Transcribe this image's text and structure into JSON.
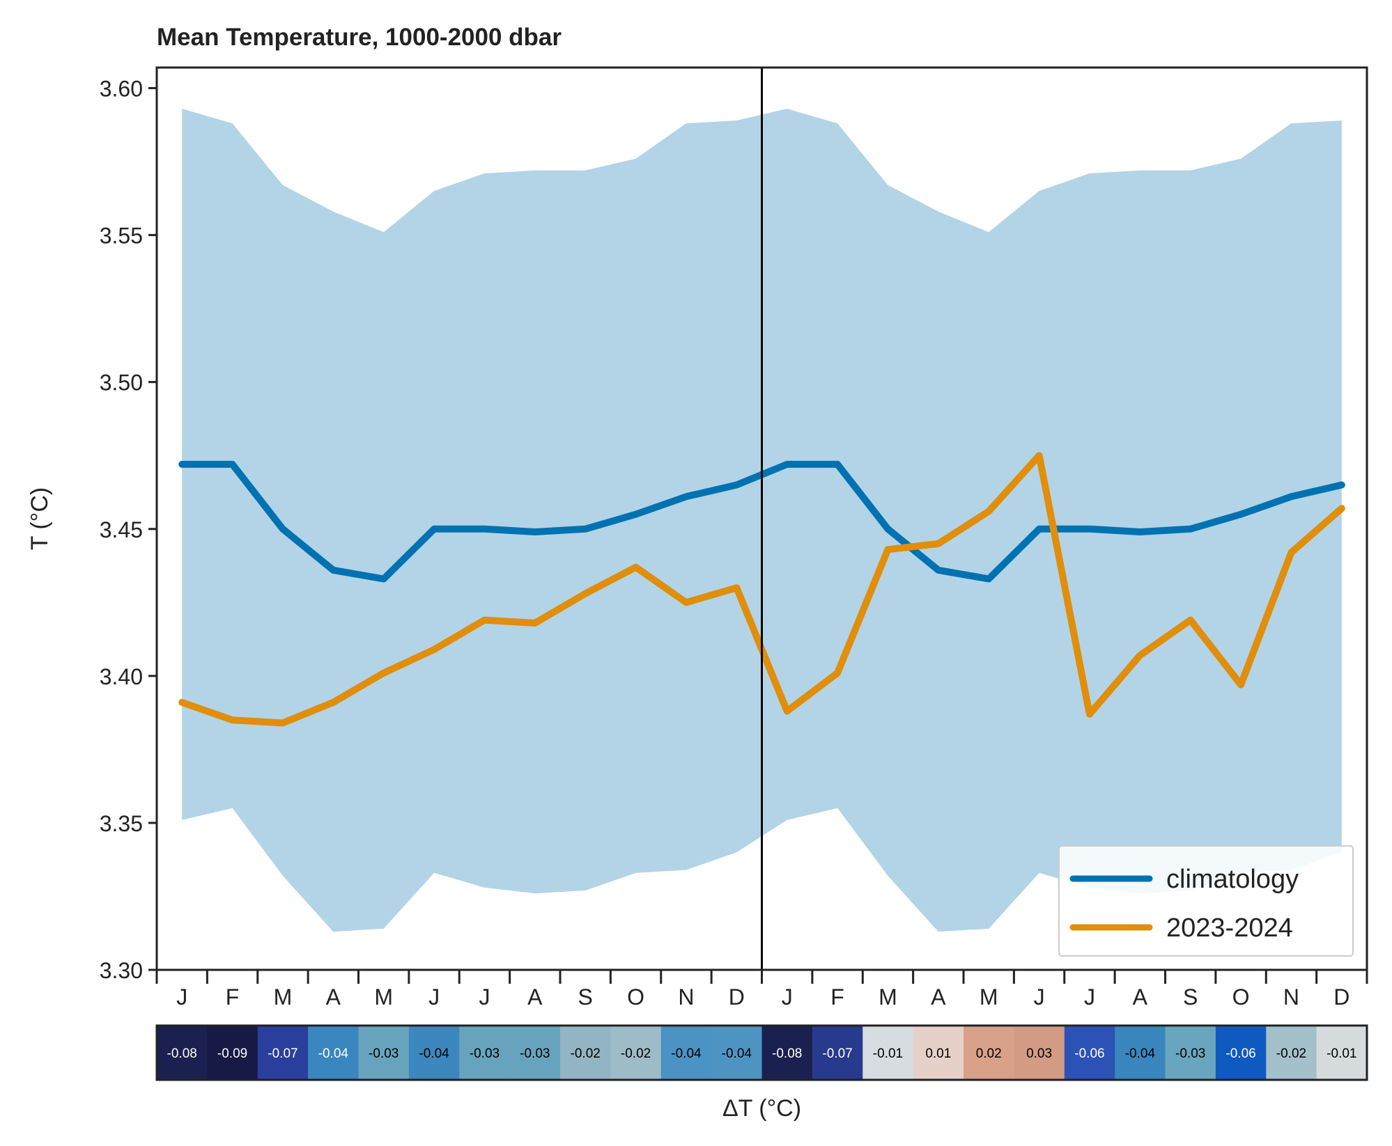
{
  "chart_data": {
    "type": "line",
    "title": "Mean Temperature, 1000-2000 dbar",
    "ylabel": "T (°C)",
    "xlabel": "",
    "ylim": [
      3.3,
      3.607
    ],
    "yticks": [
      "3.30",
      "3.35",
      "3.40",
      "3.45",
      "3.50",
      "3.55",
      "3.60"
    ],
    "yticks_values": [
      3.3,
      3.35,
      3.4,
      3.45,
      3.5,
      3.55,
      3.6
    ],
    "categories": [
      "J",
      "F",
      "M",
      "A",
      "M",
      "J",
      "J",
      "A",
      "S",
      "O",
      "N",
      "D",
      "J",
      "F",
      "M",
      "A",
      "M",
      "J",
      "J",
      "A",
      "S",
      "O",
      "N",
      "D"
    ],
    "divider_between_index": 11,
    "band": {
      "upper": [
        3.593,
        3.588,
        3.567,
        3.558,
        3.551,
        3.565,
        3.571,
        3.572,
        3.572,
        3.576,
        3.588,
        3.589,
        3.593,
        3.588,
        3.567,
        3.558,
        3.551,
        3.565,
        3.571,
        3.572,
        3.572,
        3.576,
        3.588,
        3.589
      ],
      "lower": [
        3.351,
        3.355,
        3.332,
        3.313,
        3.314,
        3.333,
        3.328,
        3.326,
        3.327,
        3.333,
        3.334,
        3.34,
        3.351,
        3.355,
        3.332,
        3.313,
        3.314,
        3.333,
        3.328,
        3.326,
        3.327,
        3.333,
        3.334,
        3.34
      ],
      "color": "#b3d4e6"
    },
    "series": [
      {
        "name": "climatology",
        "color": "#0072b2",
        "values": [
          3.472,
          3.472,
          3.45,
          3.436,
          3.433,
          3.45,
          3.45,
          3.449,
          3.45,
          3.455,
          3.461,
          3.465,
          3.472,
          3.472,
          3.45,
          3.436,
          3.433,
          3.45,
          3.45,
          3.449,
          3.45,
          3.455,
          3.461,
          3.465
        ]
      },
      {
        "name": "2023-2024",
        "color": "#e08e0b",
        "values": [
          3.391,
          3.385,
          3.384,
          3.391,
          3.401,
          3.409,
          3.419,
          3.418,
          3.428,
          3.437,
          3.425,
          3.43,
          3.388,
          3.401,
          3.443,
          3.445,
          3.456,
          3.475,
          3.387,
          3.407,
          3.419,
          3.397,
          3.442,
          3.457
        ]
      }
    ],
    "legend_position": "bottom-right",
    "anomaly_strip": {
      "label": "ΔT (°C)",
      "values": [
        "-0.08",
        "-0.09",
        "-0.07",
        "-0.04",
        "-0.03",
        "-0.04",
        "-0.03",
        "-0.03",
        "-0.02",
        "-0.02",
        "-0.04",
        "-0.04",
        "-0.08",
        "-0.07",
        "-0.01",
        "0.01",
        "0.02",
        "0.03",
        "-0.06",
        "-0.04",
        "-0.03",
        "-0.06",
        "-0.02",
        "-0.01"
      ],
      "colors": [
        "#1a2150",
        "#161a45",
        "#2a3e9c",
        "#3a86bf",
        "#67a3bd",
        "#3c87bd",
        "#67a3bd",
        "#67a3bd",
        "#93b5c3",
        "#9dbcc8",
        "#4b93c3",
        "#4e94c2",
        "#1a2150",
        "#283a8e",
        "#d6dcdf",
        "#e6d1c8",
        "#d9a08a",
        "#d39a84",
        "#2c52b7",
        "#3886bd",
        "#6aa5bf",
        "#0f5ac1",
        "#a3c0cb",
        "#d6dbde"
      ],
      "text_colors": [
        "#ffffff",
        "#ffffff",
        "#ffffff",
        "#ffffff",
        "#000000",
        "#000000",
        "#000000",
        "#000000",
        "#000000",
        "#000000",
        "#000000",
        "#000000",
        "#ffffff",
        "#ffffff",
        "#000000",
        "#000000",
        "#000000",
        "#000000",
        "#ffffff",
        "#000000",
        "#000000",
        "#ffffff",
        "#000000",
        "#000000"
      ]
    }
  }
}
